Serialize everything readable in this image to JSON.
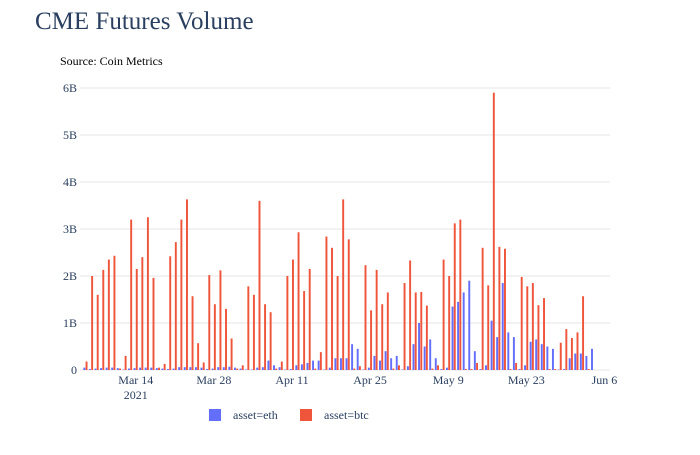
{
  "chart_data": {
    "type": "bar",
    "title": "CME Futures Volume",
    "subtitle": "Source: Coin Metrics",
    "xlabel": "",
    "ylabel": "",
    "ylim": [
      0,
      6000000000
    ],
    "y_ticks": [
      {
        "value": 0,
        "label": "0"
      },
      {
        "value": 1000000000,
        "label": "1B"
      },
      {
        "value": 2000000000,
        "label": "2B"
      },
      {
        "value": 3000000000,
        "label": "3B"
      },
      {
        "value": 4000000000,
        "label": "4B"
      },
      {
        "value": 5000000000,
        "label": "5B"
      },
      {
        "value": 6000000000,
        "label": "6B"
      }
    ],
    "x_range": [
      "2021-03-04",
      "2021-06-07"
    ],
    "x_ticks": [
      {
        "date": "2021-03-14",
        "label": "Mar 14",
        "sublabel": "2021"
      },
      {
        "date": "2021-03-28",
        "label": "Mar 28",
        "sublabel": ""
      },
      {
        "date": "2021-04-11",
        "label": "Apr 11",
        "sublabel": ""
      },
      {
        "date": "2021-04-25",
        "label": "Apr 25",
        "sublabel": ""
      },
      {
        "date": "2021-05-09",
        "label": "May 9",
        "sublabel": ""
      },
      {
        "date": "2021-05-23",
        "label": "May 23",
        "sublabel": ""
      },
      {
        "date": "2021-06-06",
        "label": "Jun 6",
        "sublabel": ""
      }
    ],
    "grid": true,
    "legend_position": "bottom",
    "series": [
      {
        "name": "asset=eth",
        "color": "#636efa",
        "points": [
          [
            "2021-03-05",
            0.05
          ],
          [
            "2021-03-06",
            0.02
          ],
          [
            "2021-03-07",
            0.03
          ],
          [
            "2021-03-08",
            0.04
          ],
          [
            "2021-03-09",
            0.05
          ],
          [
            "2021-03-10",
            0.05
          ],
          [
            "2021-03-11",
            0.04
          ],
          [
            "2021-03-12",
            0.01
          ],
          [
            "2021-03-13",
            0.03
          ],
          [
            "2021-03-14",
            0.04
          ],
          [
            "2021-03-15",
            0.05
          ],
          [
            "2021-03-16",
            0.05
          ],
          [
            "2021-03-17",
            0.05
          ],
          [
            "2021-03-18",
            0.04
          ],
          [
            "2021-03-19",
            0.03
          ],
          [
            "2021-03-20",
            0.02
          ],
          [
            "2021-03-21",
            0.03
          ],
          [
            "2021-03-22",
            0.06
          ],
          [
            "2021-03-23",
            0.06
          ],
          [
            "2021-03-24",
            0.06
          ],
          [
            "2021-03-25",
            0.06
          ],
          [
            "2021-03-26",
            0.05
          ],
          [
            "2021-03-27",
            0.02
          ],
          [
            "2021-03-28",
            0.03
          ],
          [
            "2021-03-29",
            0.06
          ],
          [
            "2021-03-30",
            0.06
          ],
          [
            "2021-03-31",
            0.07
          ],
          [
            "2021-04-01",
            0.05
          ],
          [
            "2021-04-02",
            0.03
          ],
          [
            "2021-04-03",
            0.01
          ],
          [
            "2021-04-04",
            0.01
          ],
          [
            "2021-04-05",
            0.05
          ],
          [
            "2021-04-06",
            0.06
          ],
          [
            "2021-04-07",
            0.2
          ],
          [
            "2021-04-08",
            0.1
          ],
          [
            "2021-04-09",
            0.06
          ],
          [
            "2021-04-10",
            0.01
          ],
          [
            "2021-04-11",
            0.02
          ],
          [
            "2021-04-12",
            0.1
          ],
          [
            "2021-04-13",
            0.12
          ],
          [
            "2021-04-14",
            0.15
          ],
          [
            "2021-04-15",
            0.2
          ],
          [
            "2021-04-16",
            0.2
          ],
          [
            "2021-04-17",
            0.01
          ],
          [
            "2021-04-18",
            0.05
          ],
          [
            "2021-04-19",
            0.25
          ],
          [
            "2021-04-20",
            0.25
          ],
          [
            "2021-04-21",
            0.25
          ],
          [
            "2021-04-22",
            0.55
          ],
          [
            "2021-04-23",
            0.45
          ],
          [
            "2021-04-24",
            0.01
          ],
          [
            "2021-04-25",
            0.05
          ],
          [
            "2021-04-26",
            0.3
          ],
          [
            "2021-04-27",
            0.2
          ],
          [
            "2021-04-28",
            0.4
          ],
          [
            "2021-04-29",
            0.25
          ],
          [
            "2021-04-30",
            0.3
          ],
          [
            "2021-05-01",
            0.01
          ],
          [
            "2021-05-02",
            0.08
          ],
          [
            "2021-05-03",
            0.55
          ],
          [
            "2021-05-04",
            1.0
          ],
          [
            "2021-05-05",
            0.5
          ],
          [
            "2021-05-06",
            0.65
          ],
          [
            "2021-05-07",
            0.25
          ],
          [
            "2021-05-08",
            0.02
          ],
          [
            "2021-05-09",
            0.05
          ],
          [
            "2021-05-10",
            1.35
          ],
          [
            "2021-05-11",
            1.45
          ],
          [
            "2021-05-12",
            1.65
          ],
          [
            "2021-05-13",
            1.9
          ],
          [
            "2021-05-14",
            0.4
          ],
          [
            "2021-05-15",
            0.02
          ],
          [
            "2021-05-16",
            0.1
          ],
          [
            "2021-05-17",
            1.05
          ],
          [
            "2021-05-18",
            0.7
          ],
          [
            "2021-05-19",
            1.85
          ],
          [
            "2021-05-20",
            0.8
          ],
          [
            "2021-05-21",
            0.7
          ],
          [
            "2021-05-22",
            0.02
          ],
          [
            "2021-05-23",
            0.1
          ],
          [
            "2021-05-24",
            0.6
          ],
          [
            "2021-05-25",
            0.65
          ],
          [
            "2021-05-26",
            0.55
          ],
          [
            "2021-05-27",
            0.5
          ],
          [
            "2021-05-28",
            0.45
          ],
          [
            "2021-05-29",
            0.01
          ],
          [
            "2021-05-30",
            0.02
          ],
          [
            "2021-05-31",
            0.25
          ],
          [
            "2021-06-01",
            0.35
          ],
          [
            "2021-06-02",
            0.35
          ],
          [
            "2021-06-03",
            0.3
          ],
          [
            "2021-06-04",
            0.45
          ]
        ]
      },
      {
        "name": "asset=btc",
        "color": "#ef553b",
        "points": [
          [
            "2021-03-05",
            0.18
          ],
          [
            "2021-03-06",
            2.0
          ],
          [
            "2021-03-07",
            1.6
          ],
          [
            "2021-03-08",
            2.13
          ],
          [
            "2021-03-09",
            2.35
          ],
          [
            "2021-03-10",
            2.43
          ],
          [
            "2021-03-11",
            0.03
          ],
          [
            "2021-03-12",
            0.3
          ],
          [
            "2021-03-13",
            3.2
          ],
          [
            "2021-03-14",
            2.15
          ],
          [
            "2021-03-15",
            2.4
          ],
          [
            "2021-03-16",
            3.25
          ],
          [
            "2021-03-17",
            1.96
          ],
          [
            "2021-03-18",
            0.05
          ],
          [
            "2021-03-19",
            0.13
          ],
          [
            "2021-03-20",
            2.42
          ],
          [
            "2021-03-21",
            2.72
          ],
          [
            "2021-03-22",
            3.2
          ],
          [
            "2021-03-23",
            3.63
          ],
          [
            "2021-03-24",
            1.57
          ],
          [
            "2021-03-25",
            0.57
          ],
          [
            "2021-03-26",
            0.16
          ],
          [
            "2021-03-27",
            2.02
          ],
          [
            "2021-03-28",
            1.4
          ],
          [
            "2021-03-29",
            2.12
          ],
          [
            "2021-03-30",
            1.3
          ],
          [
            "2021-03-31",
            0.67
          ],
          [
            "2021-04-01",
            0.03
          ],
          [
            "2021-04-02",
            0.1
          ],
          [
            "2021-04-03",
            1.78
          ],
          [
            "2021-04-04",
            1.6
          ],
          [
            "2021-04-05",
            3.6
          ],
          [
            "2021-04-06",
            1.4
          ],
          [
            "2021-04-07",
            1.23
          ],
          [
            "2021-04-08",
            0.03
          ],
          [
            "2021-04-09",
            0.18
          ],
          [
            "2021-04-10",
            2.0
          ],
          [
            "2021-04-11",
            2.35
          ],
          [
            "2021-04-12",
            2.93
          ],
          [
            "2021-04-13",
            1.68
          ],
          [
            "2021-04-14",
            2.15
          ],
          [
            "2021-04-15",
            0.03
          ],
          [
            "2021-04-16",
            0.38
          ],
          [
            "2021-04-17",
            2.84
          ],
          [
            "2021-04-18",
            2.6
          ],
          [
            "2021-04-19",
            2.0
          ],
          [
            "2021-04-20",
            3.63
          ],
          [
            "2021-04-21",
            2.78
          ],
          [
            "2021-04-22",
            0.03
          ],
          [
            "2021-04-23",
            0.08
          ],
          [
            "2021-04-24",
            2.23
          ],
          [
            "2021-04-25",
            1.27
          ],
          [
            "2021-04-26",
            2.13
          ],
          [
            "2021-04-27",
            1.4
          ],
          [
            "2021-04-28",
            1.65
          ],
          [
            "2021-04-29",
            0.03
          ],
          [
            "2021-04-30",
            0.1
          ],
          [
            "2021-05-01",
            1.85
          ],
          [
            "2021-05-02",
            2.33
          ],
          [
            "2021-05-03",
            1.65
          ],
          [
            "2021-05-04",
            1.66
          ],
          [
            "2021-05-05",
            1.37
          ],
          [
            "2021-05-06",
            0.03
          ],
          [
            "2021-05-07",
            0.1
          ],
          [
            "2021-05-08",
            2.35
          ],
          [
            "2021-05-09",
            2.0
          ],
          [
            "2021-05-10",
            3.12
          ],
          [
            "2021-05-11",
            3.2
          ],
          [
            "2021-05-12",
            0.02
          ],
          [
            "2021-05-13",
            0.02
          ],
          [
            "2021-05-14",
            0.15
          ],
          [
            "2021-05-15",
            2.6
          ],
          [
            "2021-05-16",
            1.8
          ],
          [
            "2021-05-17",
            5.9
          ],
          [
            "2021-05-18",
            2.62
          ],
          [
            "2021-05-19",
            2.58
          ],
          [
            "2021-05-20",
            0.02
          ],
          [
            "2021-05-21",
            0.15
          ],
          [
            "2021-05-22",
            1.98
          ],
          [
            "2021-05-23",
            1.78
          ],
          [
            "2021-05-24",
            1.85
          ],
          [
            "2021-05-25",
            1.38
          ],
          [
            "2021-05-26",
            1.53
          ],
          [
            "2021-05-27",
            0.02
          ],
          [
            "2021-05-28",
            0.02
          ],
          [
            "2021-05-29",
            0.58
          ],
          [
            "2021-05-30",
            0.87
          ],
          [
            "2021-05-31",
            0.68
          ],
          [
            "2021-06-01",
            0.8
          ],
          [
            "2021-06-02",
            1.57
          ],
          [
            "2021-06-03",
            0.02
          ]
        ]
      }
    ]
  }
}
